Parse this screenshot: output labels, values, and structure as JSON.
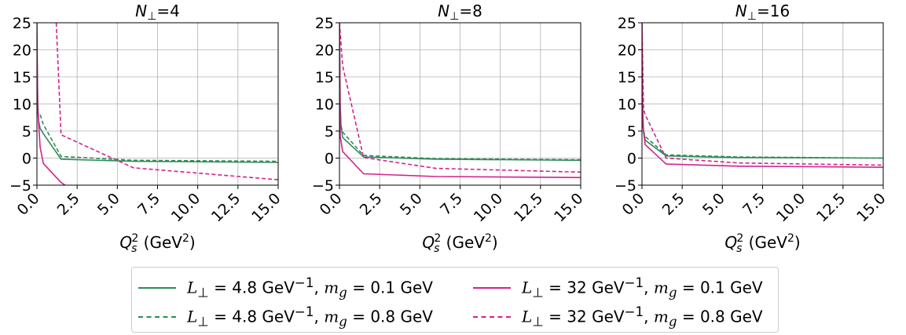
{
  "chart_data": [
    {
      "type": "line",
      "title": "N⊥=4",
      "title_sym": "N",
      "title_rest": "=4",
      "xlabel": "Q_s^2 (GeV^2)",
      "xlim": [
        0,
        15
      ],
      "ylim": [
        -5,
        25
      ],
      "xticks": [
        "0.0",
        "2.5",
        "5.0",
        "7.5",
        "10.0",
        "12.5",
        "15.0"
      ],
      "yticks": [
        "−5",
        "0",
        "5",
        "10",
        "15",
        "20",
        "25"
      ],
      "grid": true,
      "series": [
        {
          "name": "L⊥ = 4.8 GeV⁻¹, m_g = 0.1 GeV",
          "color": "#2e8b57",
          "dash": "solid",
          "x": [
            0.0,
            0.05,
            0.1,
            0.2,
            0.4,
            1.5,
            6.0,
            15.0
          ],
          "y": [
            20,
            11,
            7,
            5.5,
            4.5,
            -0.2,
            -0.6,
            -0.8
          ]
        },
        {
          "name": "L⊥ = 4.8 GeV⁻¹, m_g = 0.8 GeV",
          "color": "#2e8b57",
          "dash": "dashed",
          "x": [
            0.2,
            0.4,
            1.5,
            6.0,
            15.0
          ],
          "y": [
            8,
            6.2,
            0.3,
            -0.4,
            -0.6
          ]
        },
        {
          "name": "L⊥ = 32 GeV⁻¹, m_g = 0.1 GeV",
          "color": "#d1238d",
          "dash": "solid",
          "x": [
            0.0,
            0.05,
            0.2,
            0.4,
            1.5,
            2.0
          ],
          "y": [
            25,
            9,
            2,
            -1,
            -4.5,
            -5.5
          ]
        },
        {
          "name": "L⊥ = 32 GeV⁻¹, m_g = 0.8 GeV",
          "color": "#d1238d",
          "dash": "dashed",
          "x": [
            1.2,
            1.5,
            6.0,
            15.0
          ],
          "y": [
            25,
            4.3,
            -1.8,
            -4.0
          ]
        }
      ]
    },
    {
      "type": "line",
      "title": "N⊥=8",
      "title_sym": "N",
      "title_rest": "=8",
      "xlabel": "Q_s^2 (GeV^2)",
      "xlim": [
        0,
        15
      ],
      "ylim": [
        -5,
        25
      ],
      "xticks": [
        "0.0",
        "2.5",
        "5.0",
        "7.5",
        "10.0",
        "12.5",
        "15.0"
      ],
      "yticks": [
        "−5",
        "0",
        "5",
        "10",
        "15",
        "20",
        "25"
      ],
      "grid": true,
      "series": [
        {
          "name": "L⊥ = 4.8 GeV⁻¹, m_g = 0.1 GeV",
          "color": "#2e8b57",
          "dash": "solid",
          "x": [
            0.0,
            0.05,
            0.1,
            0.2,
            1.5,
            6.0,
            15.0
          ],
          "y": [
            25,
            10,
            6,
            3.8,
            0.2,
            -0.2,
            -0.4
          ]
        },
        {
          "name": "L⊥ = 4.8 GeV⁻¹, m_g = 0.8 GeV",
          "color": "#2e8b57",
          "dash": "dashed",
          "x": [
            0.1,
            0.2,
            1.5,
            6.0,
            15.0
          ],
          "y": [
            6,
            4.8,
            0.5,
            -0.1,
            -0.3
          ]
        },
        {
          "name": "L⊥ = 32 GeV⁻¹, m_g = 0.1 GeV",
          "color": "#d1238d",
          "dash": "solid",
          "x": [
            0.0,
            0.05,
            0.2,
            1.5,
            6.0,
            15.0
          ],
          "y": [
            25,
            4,
            1.2,
            -2.9,
            -3.4,
            -3.6
          ]
        },
        {
          "name": "L⊥ = 32 GeV⁻¹, m_g = 0.8 GeV",
          "color": "#d1238d",
          "dash": "dashed",
          "x": [
            0.0,
            0.2,
            1.5,
            6.0,
            15.0
          ],
          "y": [
            25,
            17,
            0.1,
            -1.9,
            -2.6
          ]
        }
      ]
    },
    {
      "type": "line",
      "title": "N⊥=16",
      "title_sym": "N",
      "title_rest": "=16",
      "xlabel": "Q_s^2 (GeV^2)",
      "xlim": [
        0,
        15
      ],
      "ylim": [
        -5,
        25
      ],
      "xticks": [
        "0.0",
        "2.5",
        "5.0",
        "7.5",
        "10.0",
        "12.5",
        "15.0"
      ],
      "yticks": [
        "−5",
        "0",
        "5",
        "10",
        "15",
        "20",
        "25"
      ],
      "grid": true,
      "series": [
        {
          "name": "L⊥ = 4.8 GeV⁻¹, m_g = 0.1 GeV",
          "color": "#2e8b57",
          "dash": "solid",
          "x": [
            0.0,
            0.05,
            0.1,
            0.2,
            1.5,
            6.0,
            15.0
          ],
          "y": [
            25,
            9,
            5,
            3.3,
            0.4,
            0.1,
            0.0
          ]
        },
        {
          "name": "L⊥ = 4.8 GeV⁻¹, m_g = 0.8 GeV",
          "color": "#2e8b57",
          "dash": "dashed",
          "x": [
            0.1,
            0.2,
            1.5,
            6.0,
            15.0
          ],
          "y": [
            5,
            4,
            0.6,
            0.2,
            0.0
          ]
        },
        {
          "name": "L⊥ = 32 GeV⁻¹, m_g = 0.1 GeV",
          "color": "#d1238d",
          "dash": "solid",
          "x": [
            0.0,
            0.05,
            0.2,
            1.5,
            6.0,
            15.0
          ],
          "y": [
            25,
            6,
            2.5,
            -1.1,
            -1.5,
            -1.7
          ]
        },
        {
          "name": "L⊥ = 32 GeV⁻¹, m_g = 0.8 GeV",
          "color": "#d1238d",
          "dash": "dashed",
          "x": [
            0.0,
            0.1,
            0.2,
            1.5,
            6.0,
            15.0
          ],
          "y": [
            25,
            9,
            8,
            0.0,
            -0.9,
            -1.3
          ]
        }
      ]
    }
  ],
  "legend": {
    "placement": "bottom-center",
    "items": [
      {
        "sym": "L",
        "sub": "⊥",
        "eq": " = 4.8 GeV",
        "sup": "−1",
        "mid": ", ",
        "msym": "m",
        "msub": "g",
        "tail": " = 0.1 GeV",
        "color": "#2e8b57",
        "dash": "solid"
      },
      {
        "sym": "L",
        "sub": "⊥",
        "eq": " = 32 GeV",
        "sup": "−1",
        "mid": ", ",
        "msym": "m",
        "msub": "g",
        "tail": " = 0.1 GeV",
        "color": "#d1238d",
        "dash": "solid"
      },
      {
        "sym": "L",
        "sub": "⊥",
        "eq": " = 4.8 GeV",
        "sup": "−1",
        "mid": ", ",
        "msym": "m",
        "msub": "g",
        "tail": " = 0.8 GeV",
        "color": "#2e8b57",
        "dash": "dashed"
      },
      {
        "sym": "L",
        "sub": "⊥",
        "eq": " = 32 GeV",
        "sup": "−1",
        "mid": ", ",
        "msym": "m",
        "msub": "g",
        "tail": " = 0.8 GeV",
        "color": "#d1238d",
        "dash": "dashed"
      }
    ]
  }
}
